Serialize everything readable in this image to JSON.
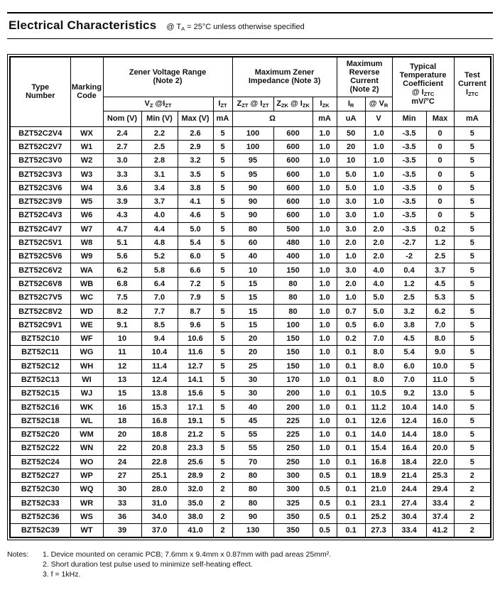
{
  "header": {
    "title": "Electrical Characteristics",
    "condition": "@ T~A~ = 25°C unless otherwise specified"
  },
  "table": {
    "columns": {
      "type_number": "Type\nNumber",
      "marking_code": "Marking\nCode",
      "zener_voltage_range": "Zener Voltage Range\n(Note 2)",
      "vz_at_izt": "V~Z~ @I~ZT~",
      "izt": "I~ZT~",
      "nom_v": "Nom (V)",
      "min_v": "Min (V)",
      "max_v": "Max (V)",
      "izt_unit": "mA",
      "max_zener_impedance": "Maximum Zener\nImpedance (Note 3)",
      "zzt_at_izt": "Z~ZT~ @ I~ZT~",
      "zzk_at_izk": "Z~ZK~ @ I~ZK~",
      "izk": "I~ZK~",
      "impedance_unit": "Ω",
      "izk_unit": "mA",
      "max_reverse_current": "Maximum\nReverse\nCurrent\n(Note 2)",
      "ir": "I~R~",
      "at_vr": "@ V~R~",
      "ir_unit": "uA",
      "vr_unit": "V",
      "temp_coefficient": "Typical\nTemperature\nCoefficient\n@ I~ZTC~\nmV/°C",
      "tc_min": "Min",
      "tc_max": "Max",
      "test_current": "Test\nCurrent\nI~ZTC~",
      "test_current_unit": "mA"
    },
    "rows": [
      [
        "BZT52C2V4",
        "WX",
        "2.4",
        "2.2",
        "2.6",
        "5",
        "100",
        "600",
        "1.0",
        "50",
        "1.0",
        "-3.5",
        "0",
        "5"
      ],
      [
        "BZT52C2V7",
        "W1",
        "2.7",
        "2.5",
        "2.9",
        "5",
        "100",
        "600",
        "1.0",
        "20",
        "1.0",
        "-3.5",
        "0",
        "5"
      ],
      [
        "BZT52C3V0",
        "W2",
        "3.0",
        "2.8",
        "3.2",
        "5",
        "95",
        "600",
        "1.0",
        "10",
        "1.0",
        "-3.5",
        "0",
        "5"
      ],
      [
        "BZT52C3V3",
        "W3",
        "3.3",
        "3.1",
        "3.5",
        "5",
        "95",
        "600",
        "1.0",
        "5.0",
        "1.0",
        "-3.5",
        "0",
        "5"
      ],
      [
        "BZT52C3V6",
        "W4",
        "3.6",
        "3.4",
        "3.8",
        "5",
        "90",
        "600",
        "1.0",
        "5.0",
        "1.0",
        "-3.5",
        "0",
        "5"
      ],
      [
        "BZT52C3V9",
        "W5",
        "3.9",
        "3.7",
        "4.1",
        "5",
        "90",
        "600",
        "1.0",
        "3.0",
        "1.0",
        "-3.5",
        "0",
        "5"
      ],
      [
        "BZT52C4V3",
        "W6",
        "4.3",
        "4.0",
        "4.6",
        "5",
        "90",
        "600",
        "1.0",
        "3.0",
        "1.0",
        "-3.5",
        "0",
        "5"
      ],
      [
        "BZT52C4V7",
        "W7",
        "4.7",
        "4.4",
        "5.0",
        "5",
        "80",
        "500",
        "1.0",
        "3.0",
        "2.0",
        "-3.5",
        "0.2",
        "5"
      ],
      [
        "BZT52C5V1",
        "W8",
        "5.1",
        "4.8",
        "5.4",
        "5",
        "60",
        "480",
        "1.0",
        "2.0",
        "2.0",
        "-2.7",
        "1.2",
        "5"
      ],
      [
        "BZT52C5V6",
        "W9",
        "5.6",
        "5.2",
        "6.0",
        "5",
        "40",
        "400",
        "1.0",
        "1.0",
        "2.0",
        "-2",
        "2.5",
        "5"
      ],
      [
        "BZT52C6V2",
        "WA",
        "6.2",
        "5.8",
        "6.6",
        "5",
        "10",
        "150",
        "1.0",
        "3.0",
        "4.0",
        "0.4",
        "3.7",
        "5"
      ],
      [
        "BZT52C6V8",
        "WB",
        "6.8",
        "6.4",
        "7.2",
        "5",
        "15",
        "80",
        "1.0",
        "2.0",
        "4.0",
        "1.2",
        "4.5",
        "5"
      ],
      [
        "BZT52C7V5",
        "WC",
        "7.5",
        "7.0",
        "7.9",
        "5",
        "15",
        "80",
        "1.0",
        "1.0",
        "5.0",
        "2.5",
        "5.3",
        "5"
      ],
      [
        "BZT52C8V2",
        "WD",
        "8.2",
        "7.7",
        "8.7",
        "5",
        "15",
        "80",
        "1.0",
        "0.7",
        "5.0",
        "3.2",
        "6.2",
        "5"
      ],
      [
        "BZT52C9V1",
        "WE",
        "9.1",
        "8.5",
        "9.6",
        "5",
        "15",
        "100",
        "1.0",
        "0.5",
        "6.0",
        "3.8",
        "7.0",
        "5"
      ],
      [
        "BZT52C10",
        "WF",
        "10",
        "9.4",
        "10.6",
        "5",
        "20",
        "150",
        "1.0",
        "0.2",
        "7.0",
        "4.5",
        "8.0",
        "5"
      ],
      [
        "BZT52C11",
        "WG",
        "11",
        "10.4",
        "11.6",
        "5",
        "20",
        "150",
        "1.0",
        "0.1",
        "8.0",
        "5.4",
        "9.0",
        "5"
      ],
      [
        "BZT52C12",
        "WH",
        "12",
        "11.4",
        "12.7",
        "5",
        "25",
        "150",
        "1.0",
        "0.1",
        "8.0",
        "6.0",
        "10.0",
        "5"
      ],
      [
        "BZT52C13",
        "WI",
        "13",
        "12.4",
        "14.1",
        "5",
        "30",
        "170",
        "1.0",
        "0.1",
        "8.0",
        "7.0",
        "11.0",
        "5"
      ],
      [
        "BZT52C15",
        "WJ",
        "15",
        "13.8",
        "15.6",
        "5",
        "30",
        "200",
        "1.0",
        "0.1",
        "10.5",
        "9.2",
        "13.0",
        "5"
      ],
      [
        "BZT52C16",
        "WK",
        "16",
        "15.3",
        "17.1",
        "5",
        "40",
        "200",
        "1.0",
        "0.1",
        "11.2",
        "10.4",
        "14.0",
        "5"
      ],
      [
        "BZT52C18",
        "WL",
        "18",
        "16.8",
        "19.1",
        "5",
        "45",
        "225",
        "1.0",
        "0.1",
        "12.6",
        "12.4",
        "16.0",
        "5"
      ],
      [
        "BZT52C20",
        "WM",
        "20",
        "18.8",
        "21.2",
        "5",
        "55",
        "225",
        "1.0",
        "0.1",
        "14.0",
        "14.4",
        "18.0",
        "5"
      ],
      [
        "BZT52C22",
        "WN",
        "22",
        "20.8",
        "23.3",
        "5",
        "55",
        "250",
        "1.0",
        "0.1",
        "15.4",
        "16.4",
        "20.0",
        "5"
      ],
      [
        "BZT52C24",
        "WO",
        "24",
        "22.8",
        "25.6",
        "5",
        "70",
        "250",
        "1.0",
        "0.1",
        "16.8",
        "18.4",
        "22.0",
        "5"
      ],
      [
        "BZT52C27",
        "WP",
        "27",
        "25.1",
        "28.9",
        "2",
        "80",
        "300",
        "0.5",
        "0.1",
        "18.9",
        "21.4",
        "25.3",
        "2"
      ],
      [
        "BZT52C30",
        "WQ",
        "30",
        "28.0",
        "32.0",
        "2",
        "80",
        "300",
        "0.5",
        "0.1",
        "21.0",
        "24.4",
        "29.4",
        "2"
      ],
      [
        "BZT52C33",
        "WR",
        "33",
        "31.0",
        "35.0",
        "2",
        "80",
        "325",
        "0.5",
        "0.1",
        "23.1",
        "27.4",
        "33.4",
        "2"
      ],
      [
        "BZT52C36",
        "WS",
        "36",
        "34.0",
        "38.0",
        "2",
        "90",
        "350",
        "0.5",
        "0.1",
        "25.2",
        "30.4",
        "37.4",
        "2"
      ],
      [
        "BZT52C39",
        "WT",
        "39",
        "37.0",
        "41.0",
        "2",
        "130",
        "350",
        "0.5",
        "0.1",
        "27.3",
        "33.4",
        "41.2",
        "2"
      ]
    ]
  },
  "notes": {
    "label": "Notes:",
    "items": [
      "1. Device mounted on ceramic PCB; 7.6mm x 9.4mm x 0.87mm with pad areas 25mm².",
      "2. Short duration test pulse used to minimize self-heating effect.",
      "3. f = 1kHz."
    ]
  }
}
